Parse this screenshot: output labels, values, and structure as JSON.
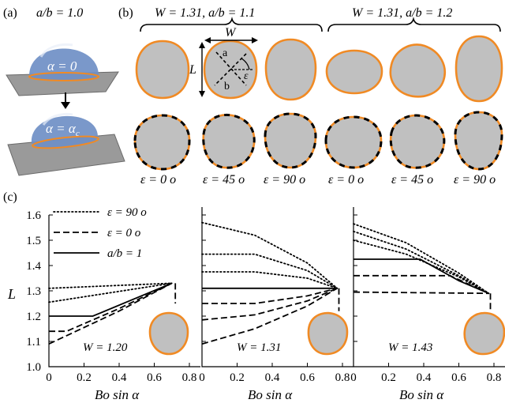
{
  "panel_a": {
    "label": "(a)",
    "ratio": "a/b = 1.0",
    "alpha_top": "α = 0",
    "alpha_bottom_main": "α = α",
    "alpha_bottom_sub": "c"
  },
  "panel_b": {
    "label": "(b)",
    "group1": "W = 1.31,  a/b = 1.1",
    "group2": "W = 1.31,  a/b = 1.2",
    "dim_W": "W",
    "dim_L": "L",
    "axis_a": "a",
    "axis_b": "b",
    "axis_eps": "ε",
    "eps_labels": [
      "ε = 0 o",
      "ε = 45 o",
      "ε = 90 o",
      "ε = 0 o",
      "ε = 45 o",
      "ε = 90 o"
    ]
  },
  "panel_c": {
    "label": "(c)",
    "ylabel": "L",
    "xlabel": "Bo sin α",
    "legend": [
      "ε = 90 o",
      "ε = 0 o",
      "a/b = 1"
    ],
    "xticks": [
      "0",
      "0.2",
      "0.4",
      "0.6",
      "0.8"
    ],
    "yticks": [
      "1.0",
      "1.1",
      "1.2",
      "1.3",
      "1.4",
      "1.5",
      "1.6"
    ]
  },
  "colors": {
    "drop_fill": "#c0c0c0",
    "contact_line": "#f08a24",
    "plane": "#9a9a9a",
    "cap": "#6f8fc6"
  },
  "chart_data": [
    {
      "type": "line",
      "title": "W = 1.20",
      "xlabel": "Bo sin α",
      "ylabel": "L",
      "xlim": [
        0,
        0.8
      ],
      "ylim": [
        1.0,
        1.6
      ],
      "series": [
        {
          "name": "a/b = 1",
          "style": "solid",
          "x": [
            0,
            0.25,
            0.7
          ],
          "y": [
            1.2,
            1.2,
            1.33
          ]
        },
        {
          "name": "ε = 90 o",
          "style": "dotted",
          "x": [
            0,
            0.7
          ],
          "y": [
            1.31,
            1.33
          ]
        },
        {
          "name": "ε = 90 o",
          "style": "dotted",
          "x": [
            0,
            0.7
          ],
          "y": [
            1.255,
            1.33
          ]
        },
        {
          "name": "ε = 0 o",
          "style": "dashed",
          "x": [
            0,
            0.1,
            0.4,
            0.7
          ],
          "y": [
            1.14,
            1.14,
            1.23,
            1.33
          ]
        },
        {
          "name": "ε = 0 o",
          "style": "dashed",
          "x": [
            0,
            0.4,
            0.7
          ],
          "y": [
            1.09,
            1.22,
            1.33
          ]
        },
        {
          "name": "",
          "style": "dashed",
          "x": [
            0.72,
            0.72
          ],
          "y": [
            1.33,
            1.25
          ]
        }
      ]
    },
    {
      "type": "line",
      "title": "W = 1.31",
      "xlabel": "Bo sin α",
      "ylabel": "L",
      "xlim": [
        0,
        0.8
      ],
      "ylim": [
        1.0,
        1.6
      ],
      "series": [
        {
          "name": "a/b = 1",
          "style": "solid",
          "x": [
            0,
            0.77
          ],
          "y": [
            1.31,
            1.31
          ]
        },
        {
          "name": "ε = 90 o",
          "style": "dotted",
          "x": [
            0,
            0.3,
            0.6,
            0.77
          ],
          "y": [
            1.57,
            1.52,
            1.41,
            1.31
          ]
        },
        {
          "name": "ε = 90 o",
          "style": "dotted",
          "x": [
            0,
            0.3,
            0.6,
            0.77
          ],
          "y": [
            1.445,
            1.445,
            1.38,
            1.31
          ]
        },
        {
          "name": "ε = 90 o",
          "style": "dotted",
          "x": [
            0,
            0.3,
            0.6,
            0.77
          ],
          "y": [
            1.375,
            1.375,
            1.35,
            1.31
          ]
        },
        {
          "name": "ε = 0 o",
          "style": "dashed",
          "x": [
            0,
            0.3,
            0.6,
            0.77
          ],
          "y": [
            1.25,
            1.25,
            1.28,
            1.31
          ]
        },
        {
          "name": "ε = 0 o",
          "style": "dashed",
          "x": [
            0,
            0.3,
            0.6,
            0.77
          ],
          "y": [
            1.185,
            1.205,
            1.26,
            1.31
          ]
        },
        {
          "name": "ε = 0 o",
          "style": "dashed",
          "x": [
            0,
            0.3,
            0.6,
            0.77
          ],
          "y": [
            1.09,
            1.15,
            1.24,
            1.31
          ]
        },
        {
          "name": "",
          "style": "dashed",
          "x": [
            0.78,
            0.78
          ],
          "y": [
            1.31,
            1.22
          ]
        }
      ]
    },
    {
      "type": "line",
      "title": "W = 1.43",
      "xlabel": "Bo sin α",
      "ylabel": "L",
      "xlim": [
        0,
        0.8
      ],
      "ylim": [
        1.0,
        1.6
      ],
      "series": [
        {
          "name": "a/b = 1",
          "style": "solid",
          "x": [
            0,
            0.38,
            0.6,
            0.77
          ],
          "y": [
            1.425,
            1.425,
            1.34,
            1.29
          ]
        },
        {
          "name": "ε = 90 o",
          "style": "dotted",
          "x": [
            0,
            0.3,
            0.6,
            0.77
          ],
          "y": [
            1.565,
            1.49,
            1.37,
            1.29
          ]
        },
        {
          "name": "ε = 90 o",
          "style": "dotted",
          "x": [
            0,
            0.3,
            0.6,
            0.77
          ],
          "y": [
            1.535,
            1.465,
            1.36,
            1.29
          ]
        },
        {
          "name": "ε = 90 o",
          "style": "dotted",
          "x": [
            0,
            0.3,
            0.6,
            0.77
          ],
          "y": [
            1.5,
            1.445,
            1.355,
            1.29
          ]
        },
        {
          "name": "ε = 0 o",
          "style": "dashed",
          "x": [
            0,
            0.55,
            0.77
          ],
          "y": [
            1.36,
            1.36,
            1.29
          ]
        },
        {
          "name": "ε = 0 o",
          "style": "dashed",
          "x": [
            0,
            0.77
          ],
          "y": [
            1.295,
            1.29
          ]
        },
        {
          "name": "",
          "style": "dashed",
          "x": [
            0.78,
            0.78
          ],
          "y": [
            1.29,
            1.22
          ]
        }
      ]
    }
  ]
}
